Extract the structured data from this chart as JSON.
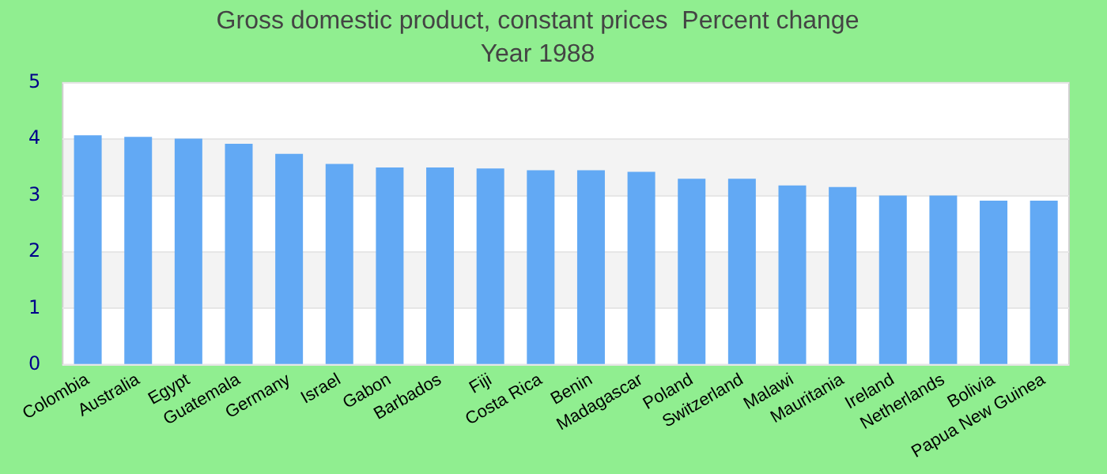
{
  "chart_data": {
    "type": "bar",
    "title": "Gross domestic product, constant prices  Percent change",
    "subtitle": "Year 1988",
    "categories": [
      "Colombia",
      "Australia",
      "Egypt",
      "Guatemala",
      "Germany",
      "Israel",
      "Gabon",
      "Barbados",
      "Fiji",
      "Costa Rica",
      "Benin",
      "Madagascar",
      "Poland",
      "Switzerland",
      "Malawi",
      "Mauritania",
      "Ireland",
      "Netherlands",
      "Bolivia",
      "Papua New Guinea"
    ],
    "values": [
      4.07,
      4.04,
      4.01,
      3.92,
      3.74,
      3.56,
      3.5,
      3.5,
      3.48,
      3.45,
      3.45,
      3.42,
      3.3,
      3.3,
      3.18,
      3.15,
      3.0,
      3.0,
      2.91,
      2.91
    ],
    "color": "#62a9f4",
    "ylim": [
      0,
      5
    ],
    "yticks": [
      0,
      1,
      2,
      3,
      4,
      5
    ],
    "grid": "y"
  }
}
